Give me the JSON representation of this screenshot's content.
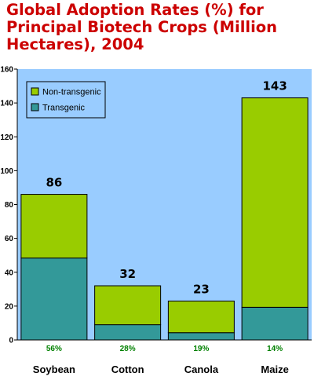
{
  "title_lines": [
    "Global Adoption Rates (%) for",
    "Principal Biotech Crops (Million",
    "Hectares), 2004"
  ],
  "colors": {
    "title": "#cc0000",
    "plot_background": "#99ccff",
    "transgenic": "#339999",
    "non_transgenic": "#99cc00",
    "percent_label": "#008000"
  },
  "chart_data": {
    "type": "bar",
    "stacked": true,
    "title": "Global Adoption Rates (%) for Principal Biotech Crops (Million Hectares), 2004",
    "categories": [
      "Soybean",
      "Cotton",
      "Canola",
      "Maize"
    ],
    "series": [
      {
        "name": "Transgenic",
        "values": [
          48.4,
          9.0,
          4.3,
          19.3
        ]
      },
      {
        "name": "Non-transgenic",
        "values": [
          37.6,
          23.0,
          18.7,
          123.7
        ]
      }
    ],
    "totals": [
      "86",
      "32",
      "23",
      "143"
    ],
    "adoption_percent": [
      "56%",
      "28%",
      "19%",
      "14%"
    ],
    "ylim": [
      0,
      160
    ],
    "yticks": [
      "0",
      "20",
      "40",
      "60",
      "80",
      "100",
      "120",
      "140",
      "160"
    ],
    "grid": false,
    "legend_position": "top-left"
  }
}
